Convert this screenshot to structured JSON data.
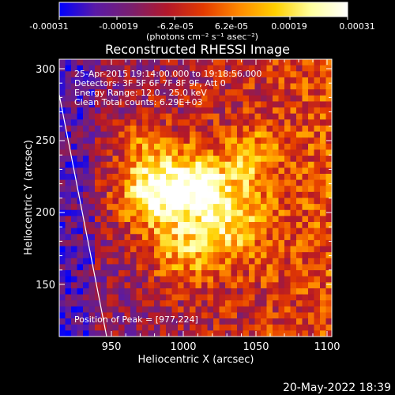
{
  "colorbar": {
    "tick_labels": [
      "-0.00031",
      "-0.00019",
      "-6.2e-05",
      "6.2e-05",
      "0.00019",
      "0.00031"
    ],
    "units": "(photons cm⁻² s⁻¹ asec⁻²)",
    "colormap_stops": [
      "#0000ff",
      "#5a1aa6",
      "#7a1f6e",
      "#b3182a",
      "#e33a00",
      "#ff8a00",
      "#ffd000",
      "#ffffa0",
      "#ffffff"
    ]
  },
  "plot": {
    "title": "Reconstructed RHESSI Image",
    "info_lines": [
      "25-Apr-2015 19:14:00.000 to 19:18:56.000",
      "Detectors: 3F 5F 6F 7F 8F 9F, Att 0",
      "Energy Range: 12.0 - 25.0 keV",
      "Clean    Total counts: 6.29E+03"
    ],
    "peak_label": "Position of Peak = [977,224]",
    "xlabel": "Heliocentric X (arcsec)",
    "ylabel": "Heliocentric Y (arcsec)",
    "x_ticks": [
      "950",
      "1000",
      "1050",
      "1100"
    ],
    "y_ticks": [
      "300",
      "250",
      "200",
      "150"
    ],
    "xlim": [
      913,
      1103
    ],
    "ylim": [
      112,
      306
    ]
  },
  "footer": {
    "date": "20-May-2022 18:39"
  }
}
